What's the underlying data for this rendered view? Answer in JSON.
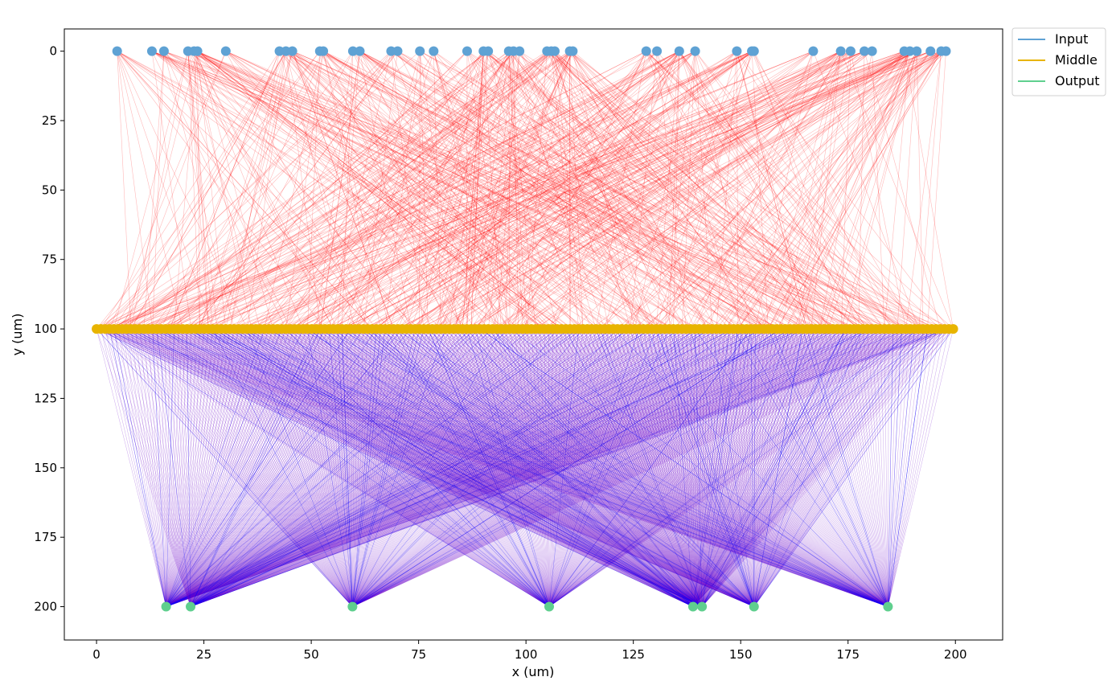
{
  "chart_data": {
    "type": "scatter",
    "title": "",
    "xlabel": "x (um)",
    "ylabel": "y (um)",
    "xlim": [
      -7.5,
      211
    ],
    "ylim": [
      212,
      -8
    ],
    "y_inverted": true,
    "grid": false,
    "x_ticks": [
      0,
      25,
      50,
      75,
      100,
      125,
      150,
      175,
      200
    ],
    "y_ticks": [
      0,
      25,
      50,
      75,
      100,
      125,
      150,
      175,
      200
    ],
    "x_tick_labels": [
      "0",
      "25",
      "50",
      "75",
      "100",
      "125",
      "150",
      "175",
      "200"
    ],
    "y_tick_labels": [
      "0",
      "25",
      "50",
      "75",
      "100",
      "125",
      "150",
      "175",
      "200"
    ],
    "legend": {
      "placement": "outside-top-right",
      "entries": [
        {
          "label": "Input",
          "color": "#5fa2d4"
        },
        {
          "label": "Middle",
          "color": "#e8b400"
        },
        {
          "label": "Output",
          "color": "#5fcf8e"
        }
      ]
    },
    "series": [
      {
        "name": "Input",
        "color": "#5fa2d4",
        "y": 0,
        "x": [
          4.8,
          12.9,
          15.7,
          21.3,
          22.7,
          23.5,
          30.1,
          42.6,
          44.1,
          45.6,
          52.0,
          52.8,
          59.7,
          61.3,
          68.6,
          70.1,
          75.3,
          78.5,
          86.3,
          90.1,
          91.2,
          96.0,
          97.1,
          98.5,
          104.9,
          105.9,
          106.7,
          110.2,
          110.9,
          128.0,
          130.5,
          135.7,
          139.4,
          149.1,
          152.6,
          153.1,
          166.9,
          173.3,
          175.6,
          178.8,
          180.6,
          188.1,
          189.4,
          191.0,
          194.2,
          196.7,
          197.8
        ]
      },
      {
        "name": "Middle",
        "color": "#e8b400",
        "y": 100,
        "x_range": [
          0,
          199.5
        ],
        "count": 200
      },
      {
        "name": "Output",
        "color": "#5fcf8e",
        "y": 200,
        "x": [
          16.2,
          21.9,
          59.6,
          105.4,
          138.9,
          141.0,
          153.1,
          184.3
        ]
      }
    ],
    "connections": [
      {
        "from": "Input",
        "to": "Middle",
        "color": "#ff0000",
        "count": 700
      },
      {
        "from": "Middle",
        "to": "Output",
        "color": "#6a00c8",
        "note": "all-to-all"
      }
    ]
  }
}
